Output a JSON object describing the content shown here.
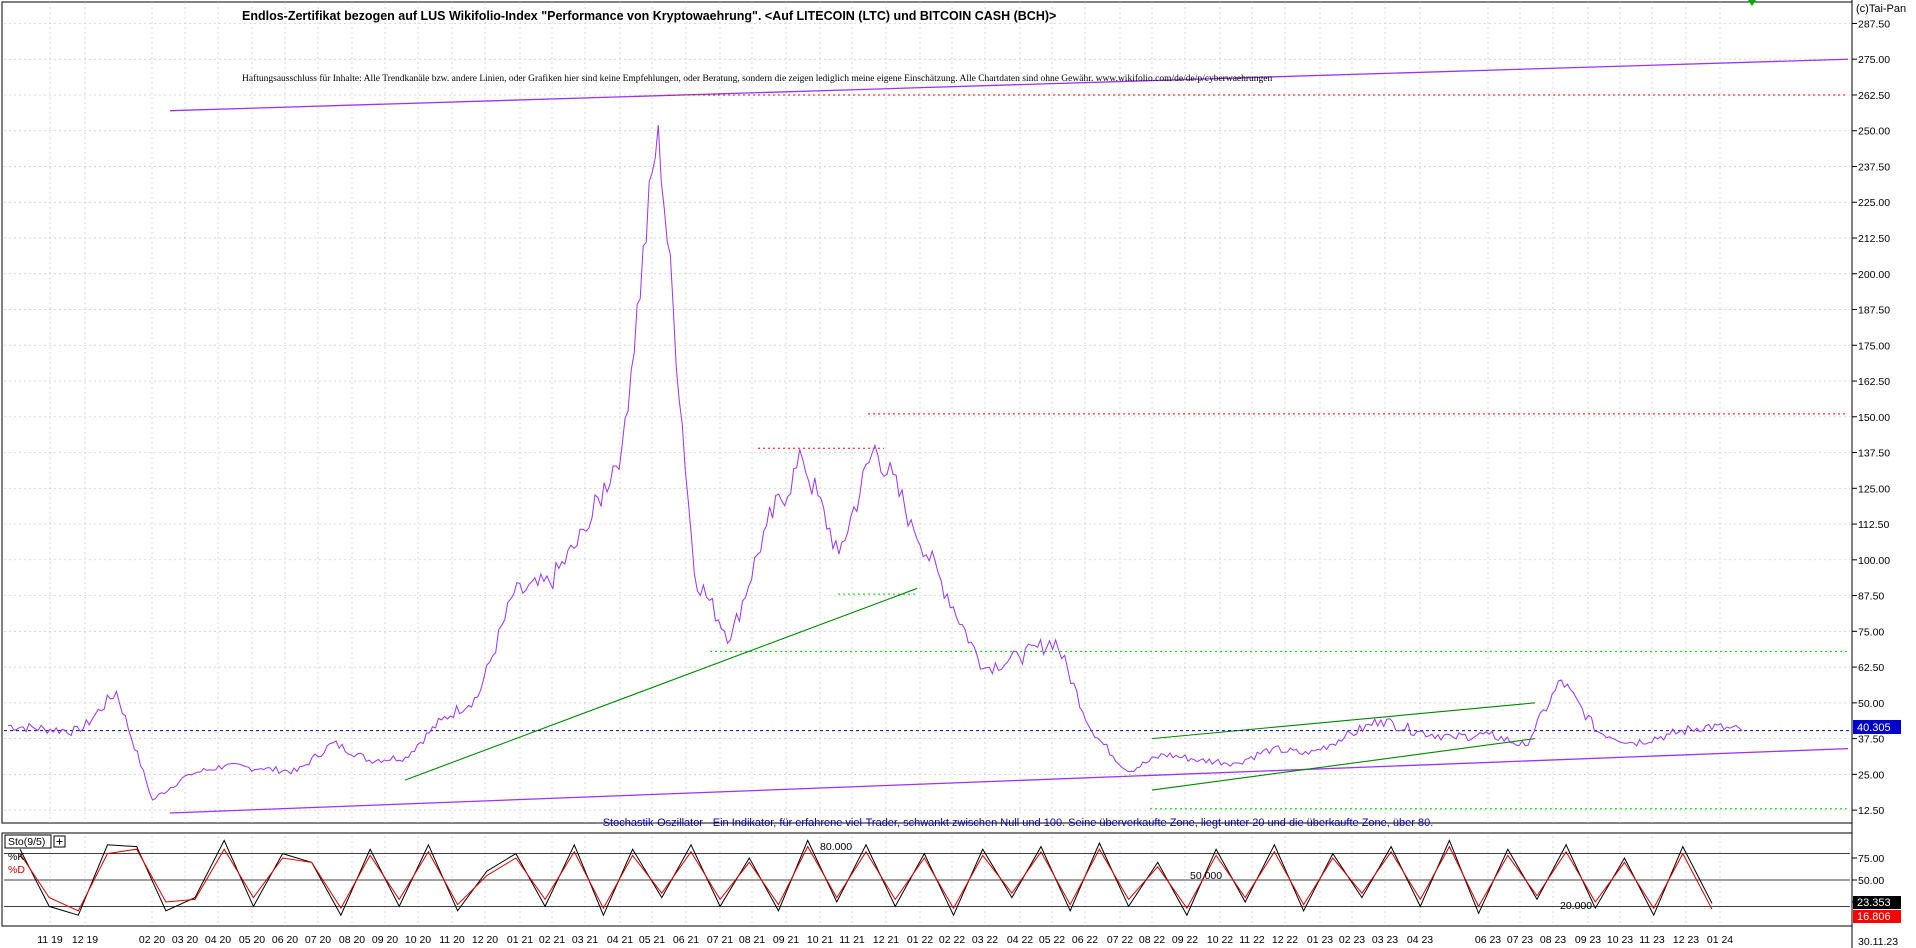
{
  "header": {
    "title": "Endlos-Zertifikat bezogen auf LUS Wikifolio-Index \"Performance von Kryptowaehrung\". <Auf LITECOIN (LTC) und BITCOIN CASH (BCH)>",
    "disclaimer": "Haftungsausschluss für Inhalte: Alle Trendkanäle bzw. andere Linien, oder Grafiken hier sind keine Empfehlungen, oder Beratung, sondern die zeigen lediglich meine eigene Einschätzung. Alle Chartdaten sind ohne Gewähr.  www.wikifolio.com/de/de/p/cyberwaehrungen",
    "brand": "(c)Tai-Pan"
  },
  "price_panel": {
    "y_ticks": [
      "287.50",
      "275.00",
      "262.50",
      "250.00",
      "237.50",
      "225.00",
      "212.50",
      "200.00",
      "187.50",
      "175.00",
      "162.50",
      "150.00",
      "137.50",
      "125.00",
      "112.50",
      "100.00",
      "87.50",
      "75.00",
      "62.50",
      "50.00",
      "37.50",
      "25.00",
      "12.50"
    ],
    "last_value": "40.305"
  },
  "osc_panel": {
    "label": "Sto(9/5)",
    "k_label": "%K",
    "d_label": "%D",
    "description": "- Stochastik-Oszillator - Ein Indikator, für erfahrene viel-Trader, schwankt zwischen Null und 100. Seine überverkaufte Zone, liegt unter 20 und die überkaufte Zone, über 80.",
    "level_80": "80.000",
    "level_50": "50.000",
    "level_20": "20.000",
    "y_ticks": [
      "75.00",
      "50.00",
      "25.00"
    ],
    "k_value": "23.353",
    "d_value": "16.806"
  },
  "x_axis": {
    "labels": [
      "11 19",
      "12 19",
      "02 20",
      "03 20",
      "04 20",
      "05 20",
      "06 20",
      "07 20",
      "08 20",
      "09 20",
      "10 20",
      "11 20",
      "12 20",
      "01 21",
      "02 21",
      "03 21",
      "04 21",
      "05 21",
      "06 21",
      "07 21",
      "08 21",
      "09 21",
      "10 21",
      "11 21",
      "12 21",
      "01 22",
      "02 22",
      "03 22",
      "04 22",
      "05 22",
      "06 22",
      "07 22",
      "08 22",
      "09 22",
      "10 22",
      "11 22",
      "12 22",
      "01 23",
      "02 23",
      "03 23",
      "04 23",
      "06 23",
      "07 23",
      "08 23",
      "09 23",
      "10 23",
      "11 23",
      "12 23",
      "01 24"
    ],
    "right_label": "30.11.23"
  },
  "colors": {
    "price_line": "#9933ff",
    "trend_purple": "#9933ff",
    "trend_green": "#008800",
    "support_red": "#ff0000",
    "support_green": "#00cc00",
    "current_blue": "#0000cc",
    "k_line": "#000000",
    "d_line": "#dd0000"
  },
  "chart_data": [
    {
      "type": "line",
      "series": [
        {
          "x": [
            "2019-11",
            "2019-12",
            "2020-01",
            "2020-02",
            "2020-03",
            "2020-04",
            "2020-05",
            "2020-06",
            "2020-07",
            "2020-08",
            "2020-09",
            "2020-10",
            "2020-11",
            "2020-12",
            "2021-01",
            "2021-02",
            "2021-03",
            "2021-04",
            "2021-05",
            "2021-06",
            "2021-07",
            "2021-08",
            "2021-09",
            "2021-10",
            "2021-11",
            "2021-12",
            "2022-01",
            "2022-02",
            "2022-03",
            "2022-04",
            "2022-05",
            "2022-06",
            "2022-07",
            "2022-08",
            "2022-09",
            "2022-10",
            "2022-11",
            "2022-12",
            "2023-01",
            "2023-02",
            "2023-03",
            "2023-04",
            "2023-05",
            "2023-06",
            "2023-07",
            "2023-08",
            "2023-09",
            "2023-10",
            "2023-11"
          ],
          "values": [
            42,
            41,
            40,
            54,
            16,
            25,
            28,
            27,
            26,
            36,
            30,
            31,
            44,
            52,
            88,
            92,
            110,
            140,
            252,
            95,
            72,
            112,
            135,
            102,
            140,
            114,
            88,
            62,
            66,
            72,
            40,
            26,
            32,
            30,
            29,
            34,
            32,
            38,
            44,
            40,
            38,
            39,
            35,
            58,
            40,
            36,
            39,
            42,
            40.305
          ]
        }
      ],
      "ylim": [
        8,
        295
      ],
      "grid": true,
      "annotations": {
        "current_value": 40.305,
        "resistance_levels": [
          262.5,
          151,
          139
        ],
        "support_levels": [
          88,
          68,
          13
        ]
      }
    },
    {
      "type": "line",
      "series": [
        {
          "name": "%K",
          "values": [
            85,
            20,
            10,
            90,
            88,
            15,
            30,
            95,
            20,
            80,
            70,
            10,
            85,
            20,
            90,
            15,
            60,
            80,
            20,
            90,
            10,
            85,
            30,
            90,
            20,
            75,
            15,
            95,
            25,
            90,
            20,
            80,
            10,
            85,
            30,
            88,
            15,
            92,
            20,
            70,
            10,
            85,
            25,
            90,
            15,
            80,
            30,
            88,
            20,
            95,
            12,
            85,
            28,
            90,
            18,
            75,
            10,
            88,
            23.353
          ]
        },
        {
          "name": "%D",
          "values": [
            80,
            30,
            15,
            80,
            85,
            25,
            28,
            85,
            30,
            75,
            70,
            18,
            78,
            28,
            82,
            22,
            55,
            75,
            28,
            82,
            18,
            78,
            35,
            82,
            28,
            70,
            22,
            88,
            30,
            82,
            28,
            75,
            18,
            78,
            35,
            82,
            22,
            85,
            28,
            65,
            18,
            78,
            30,
            82,
            22,
            75,
            35,
            82,
            28,
            88,
            20,
            78,
            32,
            82,
            25,
            70,
            18,
            80,
            16.806
          ]
        }
      ],
      "ylim": [
        0,
        100
      ]
    }
  ]
}
